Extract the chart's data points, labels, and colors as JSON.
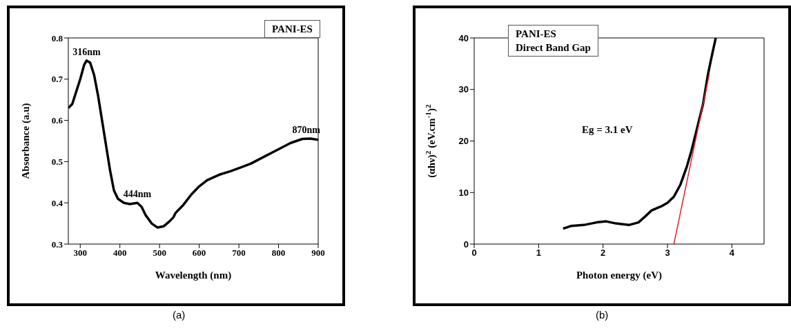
{
  "chart_data": [
    {
      "type": "line",
      "xlabel": "Wavelength (nm)",
      "ylabel": "Absorbance (a.u)",
      "xlim": [
        270,
        900
      ],
      "ylim": [
        0.3,
        0.8
      ],
      "xticks": [
        300,
        400,
        500,
        600,
        700,
        800,
        900
      ],
      "yticks": [
        0.3,
        0.4,
        0.5,
        0.6,
        0.7,
        0.8
      ],
      "marker": "none",
      "line_style": "solid",
      "annotations": [
        {
          "text": "316nm",
          "x": 316,
          "y": 0.745
        },
        {
          "text": "444nm",
          "x": 444,
          "y": 0.4
        },
        {
          "text": "870nm",
          "x": 870,
          "y": 0.556
        },
        "PANI-ES",
        "(a)"
      ],
      "series": [
        {
          "color": "#000000",
          "x": [
            270,
            280,
            290,
            300,
            310,
            316,
            325,
            335,
            345,
            355,
            365,
            375,
            385,
            395,
            410,
            425,
            444,
            455,
            465,
            480,
            495,
            510,
            525,
            535,
            540,
            560,
            580,
            600,
            620,
            650,
            680,
            700,
            730,
            760,
            800,
            830,
            860,
            880,
            900
          ],
          "values": [
            0.63,
            0.64,
            0.67,
            0.7,
            0.735,
            0.745,
            0.74,
            0.71,
            0.66,
            0.6,
            0.54,
            0.48,
            0.43,
            0.41,
            0.4,
            0.397,
            0.4,
            0.39,
            0.37,
            0.35,
            0.34,
            0.343,
            0.355,
            0.365,
            0.375,
            0.395,
            0.42,
            0.44,
            0.455,
            0.468,
            0.477,
            0.484,
            0.495,
            0.51,
            0.53,
            0.545,
            0.555,
            0.556,
            0.553
          ]
        }
      ]
    },
    {
      "type": "line",
      "xlabel": "Photon energy (eV)",
      "ylabel": "(αhν)$^{2}$ (eV.cm$^{-1}$)$^{2}$",
      "xlim": [
        0,
        4.5
      ],
      "ylim": [
        0,
        40
      ],
      "xticks": [
        0,
        1,
        2,
        3,
        4
      ],
      "yticks": [
        0,
        10,
        20,
        30,
        40
      ],
      "marker": "none",
      "line_style": "solid",
      "annotations": [
        "PANI-ES",
        "Direct Band Gap",
        "Eg = 3.1 eV",
        "(b)"
      ],
      "series": [
        {
          "color": "#000000",
          "x": [
            1.38,
            1.5,
            1.7,
            1.9,
            2.05,
            2.2,
            2.4,
            2.55,
            2.65,
            2.75,
            2.9,
            3.0,
            3.1,
            3.2,
            3.3,
            3.37,
            3.45,
            3.55,
            3.63,
            3.68,
            3.75
          ],
          "values": [
            3.0,
            3.5,
            3.7,
            4.2,
            4.4,
            4.0,
            3.7,
            4.2,
            5.3,
            6.5,
            7.3,
            8.0,
            9.2,
            11.5,
            15,
            18,
            22,
            27,
            33,
            36,
            40
          ]
        },
        {
          "color": "#e0202a",
          "x": [
            3.1,
            3.65
          ],
          "values": [
            0,
            33
          ]
        }
      ]
    }
  ]
}
